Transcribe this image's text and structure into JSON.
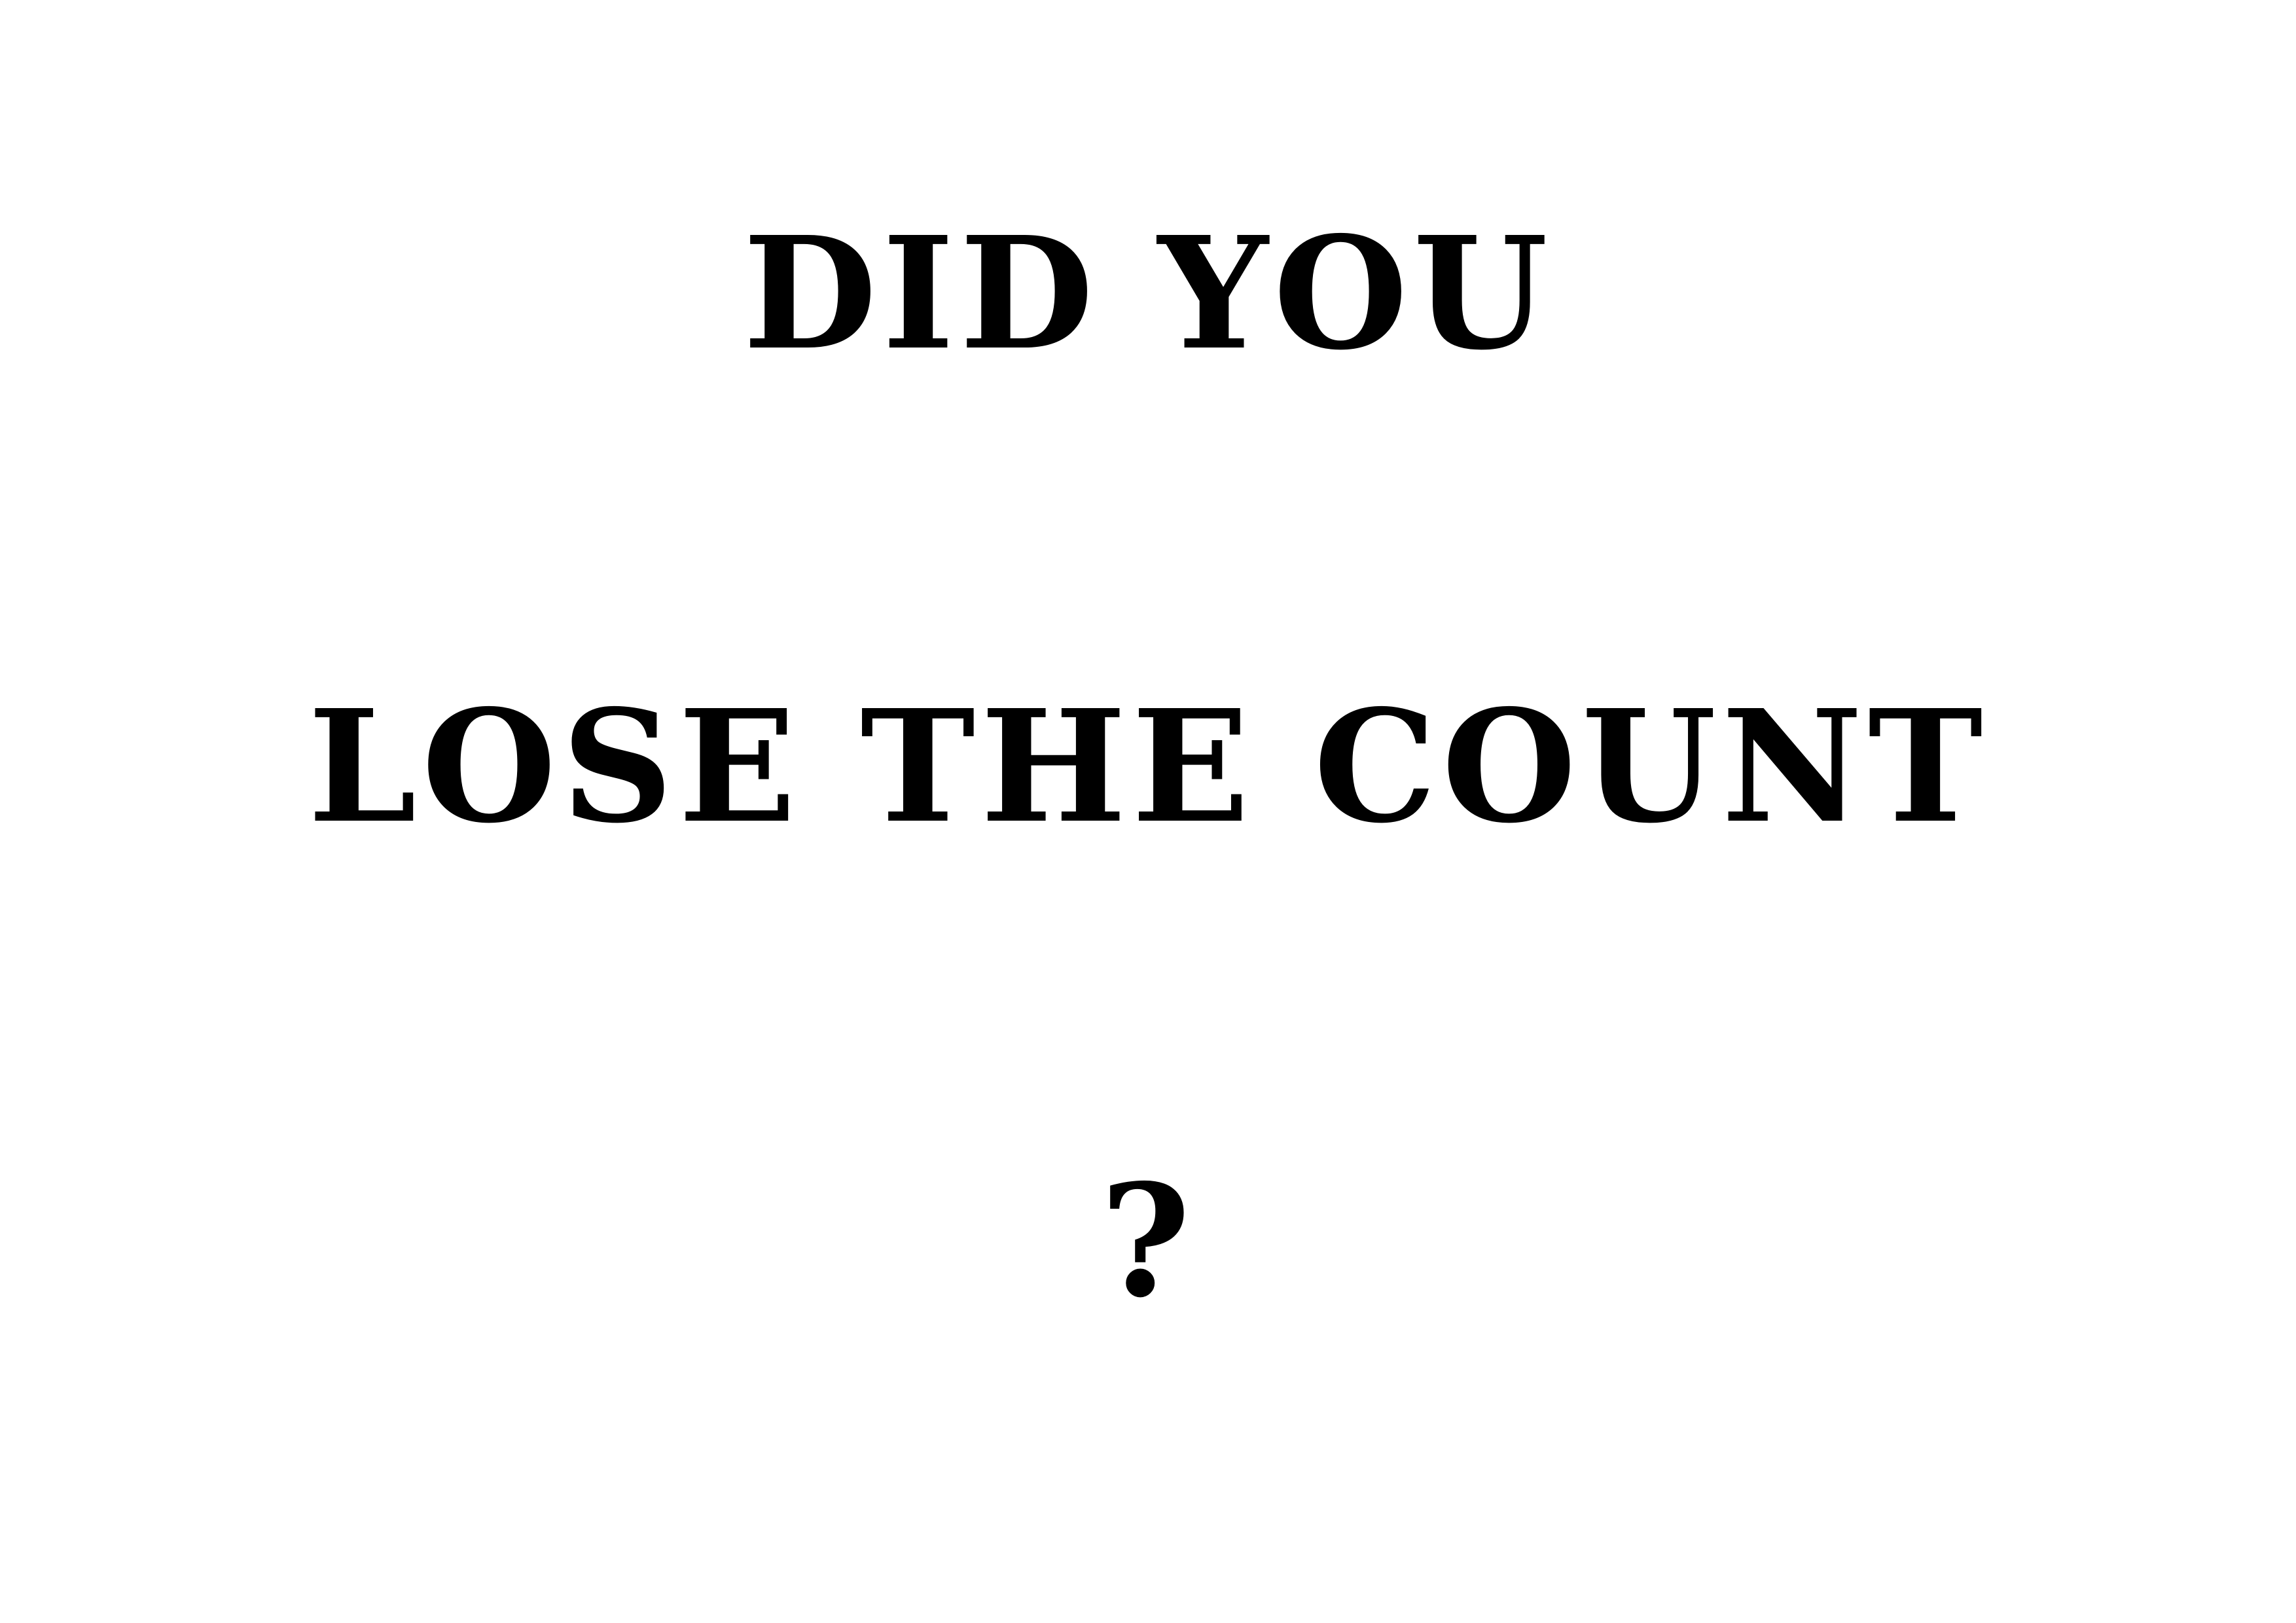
{
  "poster": {
    "line_1": "DID YOU",
    "line_2": "LOSE THE COUNT",
    "line_3": "?"
  },
  "colors": {
    "background": "#ffffff",
    "text": "#000000"
  }
}
